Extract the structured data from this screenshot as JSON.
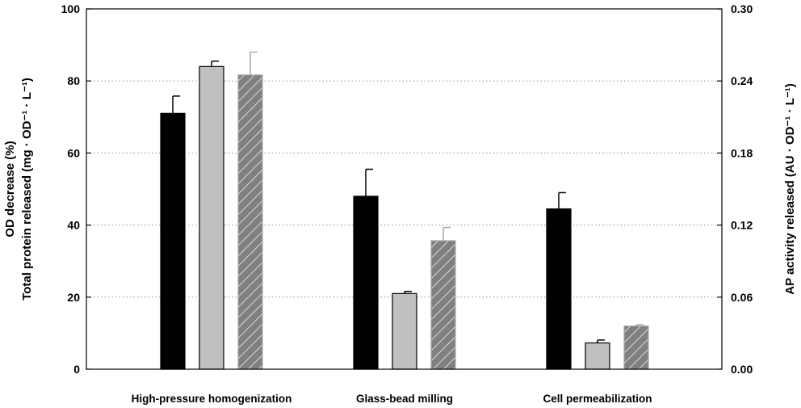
{
  "chart_data": {
    "type": "bar",
    "categories": [
      "High-pressure homogenization",
      "Glass-bead milling",
      "Cell permeabilization"
    ],
    "series": [
      {
        "name": "OD decrease",
        "axis": "left",
        "style": "solid",
        "color": "#000000",
        "values": [
          71,
          48,
          44.5
        ],
        "errors": [
          4.8,
          7.5,
          4.5
        ]
      },
      {
        "name": "Total protein released",
        "axis": "left",
        "style": "solid",
        "color": "#c0c0c0",
        "values": [
          84,
          21,
          7.3
        ],
        "errors": [
          1.5,
          0.6,
          0.8
        ]
      },
      {
        "name": "AP activity released",
        "axis": "right",
        "style": "hatched",
        "color": "#808080",
        "values": [
          0.245,
          0.107,
          0.036
        ],
        "errors": [
          0.019,
          0.011,
          0.001
        ]
      }
    ],
    "left_axis": {
      "label_line1": "OD decrease (%)",
      "label_line2": "Total protein released (mg · OD⁻¹ · L⁻¹)",
      "ylim": [
        0,
        100
      ],
      "ticks": [
        "0",
        "20",
        "40",
        "60",
        "80",
        "100"
      ]
    },
    "right_axis": {
      "label": "AP activity released (AU · OD⁻¹ · L⁻¹)",
      "ylim": [
        0,
        0.3
      ],
      "ticks": [
        "0.00",
        "0.06",
        "0.12",
        "0.18",
        "0.24",
        "0.30"
      ]
    },
    "grid": "dotted-horizontal"
  }
}
